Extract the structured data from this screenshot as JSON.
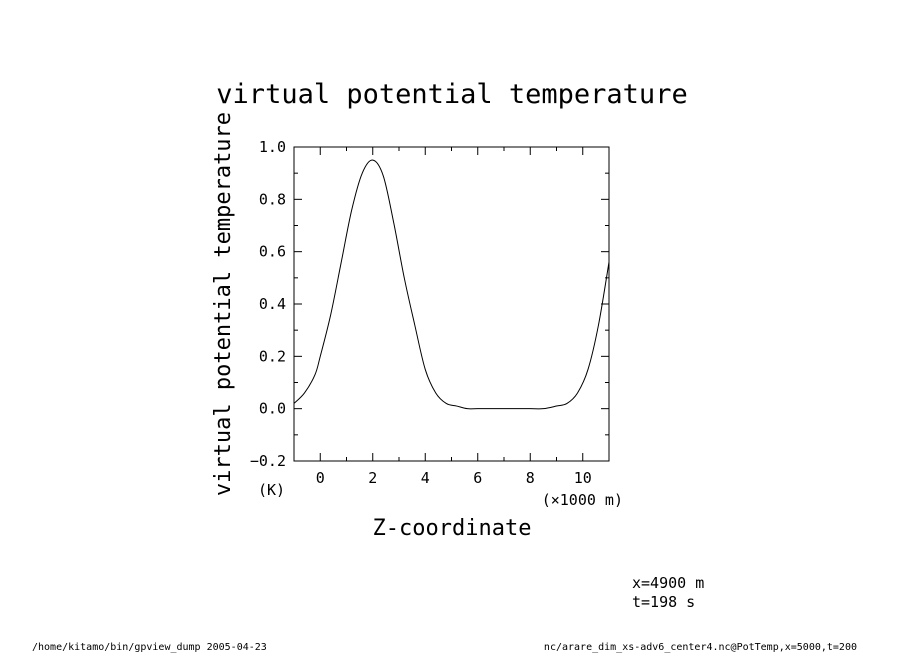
{
  "chart_data": {
    "type": "line",
    "title": "virtual potential temperature",
    "xlabel": "Z-coordinate",
    "ylabel": "virtual potential temperature",
    "x_unit": "(×1000 m)",
    "y_unit": "(K)",
    "xlim": [
      -1,
      11
    ],
    "ylim": [
      -0.2,
      1.0
    ],
    "x_ticks": [
      "0",
      "2",
      "4",
      "6",
      "8",
      "10"
    ],
    "y_ticks": [
      "1.0",
      "0.8",
      "0.6",
      "0.4",
      "0.2",
      "0.0",
      "−0.2"
    ],
    "grid": false,
    "series": [
      {
        "x": [
          -1,
          -0.6,
          -0.2,
          0,
          0.4,
          0.8,
          1.2,
          1.6,
          2,
          2.4,
          2.8,
          3.2,
          3.6,
          4,
          4.4,
          4.8,
          5.2,
          5.6,
          6,
          6.5,
          7,
          7.5,
          8,
          8.5,
          9,
          9.4,
          9.8,
          10.2,
          10.6,
          11
        ],
        "y": [
          0.02,
          0.06,
          0.13,
          0.2,
          0.36,
          0.56,
          0.76,
          0.9,
          0.95,
          0.89,
          0.71,
          0.5,
          0.32,
          0.15,
          0.06,
          0.02,
          0.01,
          0.0,
          0.0,
          0.0,
          0.0,
          0.0,
          0.0,
          0.0,
          0.01,
          0.02,
          0.06,
          0.15,
          0.32,
          0.56
        ]
      }
    ]
  },
  "info": {
    "line1": "x=4900  m",
    "line2": "t=198  s"
  },
  "footer": {
    "left": "/home/kitamo/bin/gpview_dump   2005-04-23",
    "right": "nc/arare_dim_xs-adv6_center4.nc@PotTemp,x=5000,t=200"
  }
}
